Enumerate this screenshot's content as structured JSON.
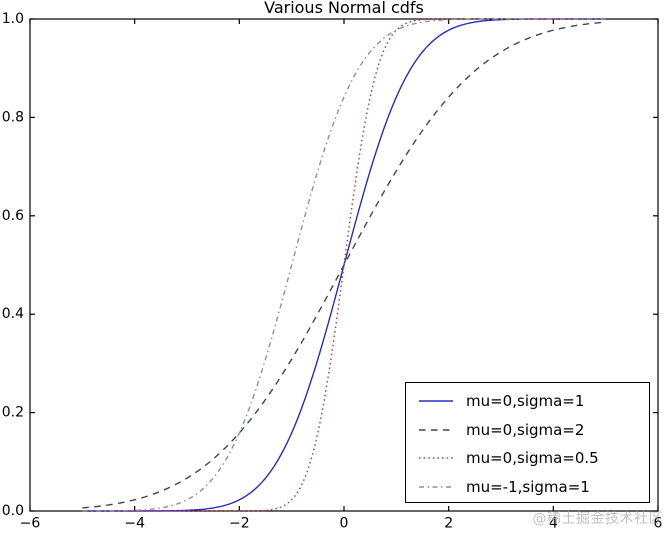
{
  "figure": {
    "background": "#ffffff",
    "axis_color": "#000000"
  },
  "chart_data": {
    "type": "line",
    "title": "Various Normal cdfs",
    "xlabel": "",
    "ylabel": "",
    "xlim": [
      -6,
      6
    ],
    "ylim": [
      0,
      1
    ],
    "grid": false,
    "legend_position": "lower right",
    "x_ticks": {
      "values": [
        -6,
        -4,
        -2,
        0,
        2,
        4,
        6
      ],
      "labels": [
        "−6",
        "−4",
        "−2",
        "0",
        "2",
        "4",
        "6"
      ]
    },
    "y_ticks": {
      "values": [
        0,
        0.2,
        0.4,
        0.6,
        0.8,
        1
      ],
      "labels": [
        "0.0",
        "0.2",
        "0.4",
        "0.6",
        "0.8",
        "1.0"
      ]
    },
    "curve_x_range": [
      -5,
      5
    ],
    "sample_x": [
      -5,
      -4,
      -3,
      -2,
      -1,
      0,
      1,
      2,
      3,
      4,
      5
    ],
    "series": [
      {
        "name": "mu=0,sigma=1",
        "mu": 0,
        "sigma": 1,
        "color": "#2a2ac8",
        "line_style": "solid",
        "values": [
          0.0,
          0.0,
          0.0013,
          0.0228,
          0.1587,
          0.5,
          0.8413,
          0.9772,
          0.9987,
          1.0,
          1.0
        ]
      },
      {
        "name": "mu=0,sigma=2",
        "mu": 0,
        "sigma": 2,
        "color": "#3e4843",
        "line_style": "dashed",
        "values": [
          0.0062,
          0.0228,
          0.0668,
          0.1587,
          0.3085,
          0.5,
          0.6915,
          0.8413,
          0.9332,
          0.9772,
          0.9938
        ]
      },
      {
        "name": "mu=0,sigma=0.5",
        "mu": 0,
        "sigma": 0.5,
        "color": "#c23b45",
        "line_style": "dotted",
        "values": [
          0.0,
          0.0,
          0.0,
          0.0,
          0.0228,
          0.5,
          0.9772,
          1.0,
          1.0,
          1.0,
          1.0
        ]
      },
      {
        "name": "mu=-1,sigma=1",
        "mu": -1,
        "sigma": 1,
        "color": "#8f948f",
        "line_style": "dashdot",
        "values": [
          0.0,
          0.0013,
          0.0228,
          0.1587,
          0.5,
          0.8413,
          0.9772,
          0.9987,
          1.0,
          1.0,
          1.0
        ]
      }
    ]
  },
  "watermark": {
    "text": "@稀土掘金技术社区",
    "color": "#ababab"
  }
}
